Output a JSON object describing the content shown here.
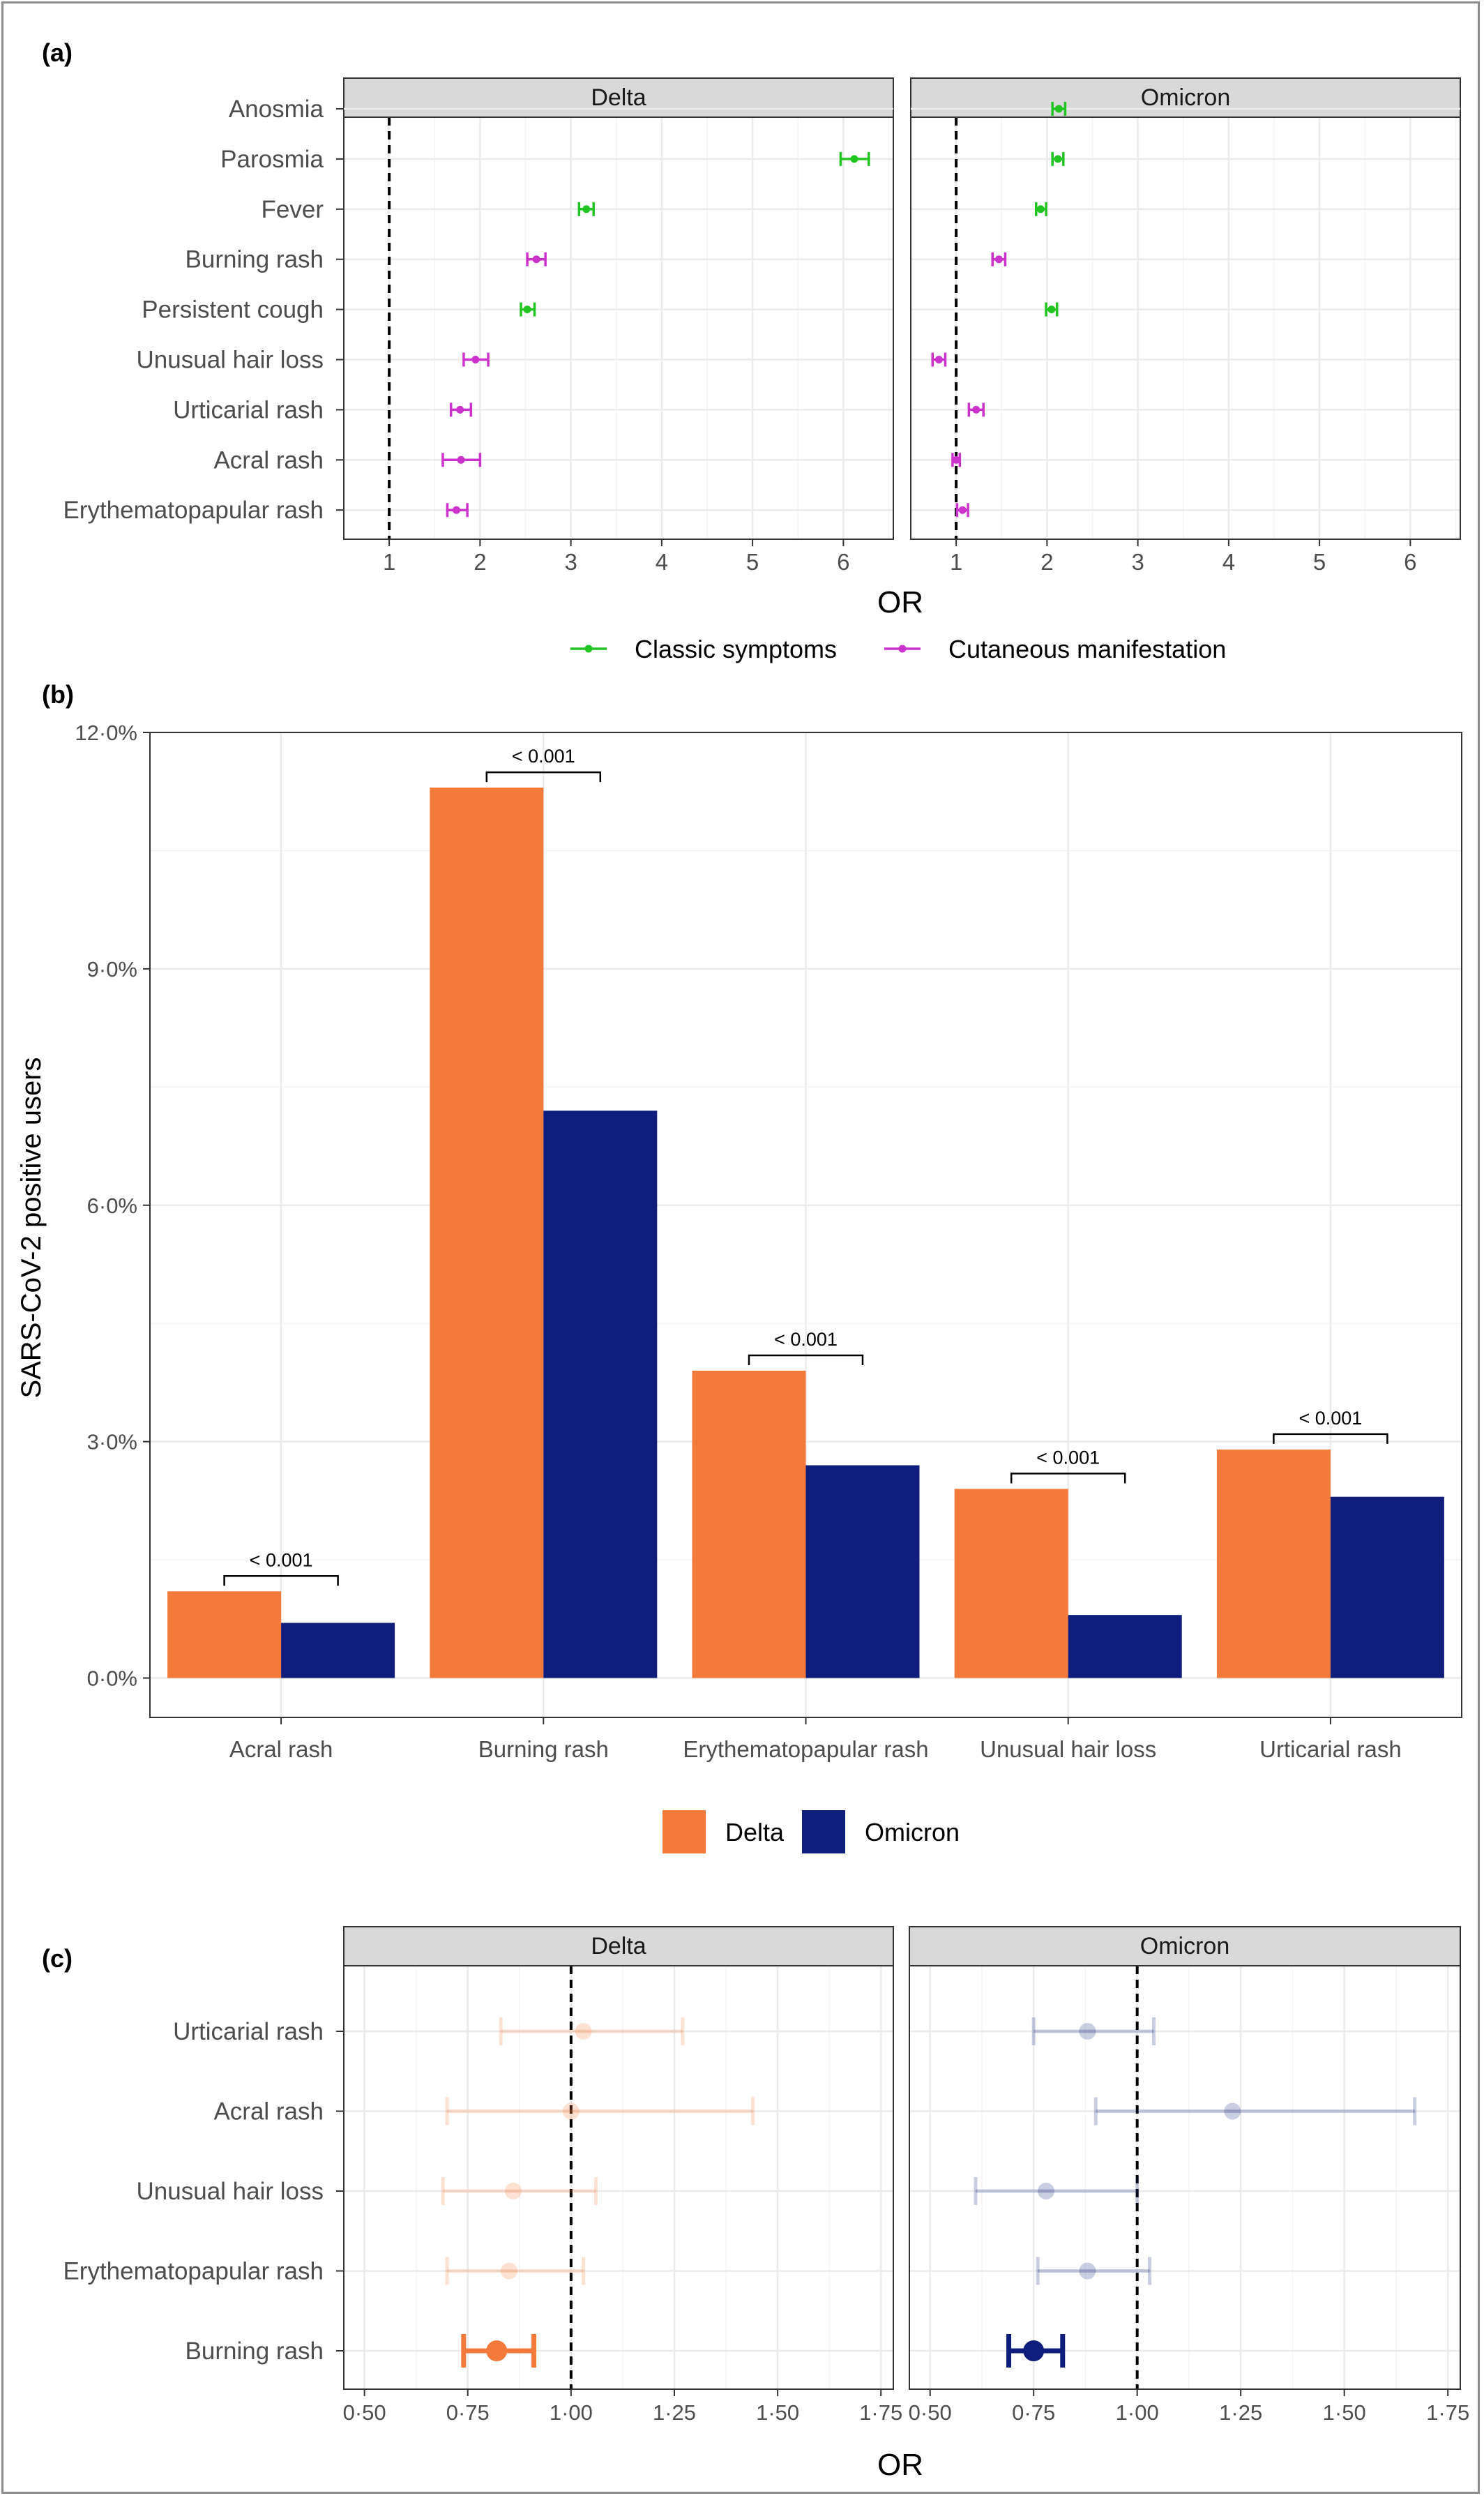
{
  "panel_labels": [
    "(a)",
    "(b)",
    "(c)"
  ],
  "colors": {
    "classic": "#22c422",
    "cutaneous": "#cc33cc",
    "delta": "#f47a3c",
    "omicron": "#0f1e7c",
    "strip": "#d9d9d9",
    "grid": "#ebebeb"
  },
  "chart_data": [
    {
      "type": "scatter",
      "panel": "(a)",
      "facets": [
        "Delta",
        "Omicron"
      ],
      "categories": [
        "Anosmia",
        "Parosmia",
        "Fever",
        "Burning rash",
        "Persistent cough",
        "Unusual hair loss",
        "Urticarial rash",
        "Acral rash",
        "Erythematopapular rash"
      ],
      "category_group": [
        "Classic symptoms",
        "Classic symptoms",
        "Classic symptoms",
        "Cutaneous manifestation",
        "Classic symptoms",
        "Cutaneous manifestation",
        "Cutaneous manifestation",
        "Cutaneous manifestation",
        "Cutaneous manifestation"
      ],
      "series": [
        {
          "facet": "Delta",
          "or": [
            null,
            6.12,
            3.17,
            2.62,
            2.52,
            1.95,
            1.78,
            1.79,
            1.74
          ],
          "low": [
            null,
            5.97,
            3.09,
            2.52,
            2.45,
            1.82,
            1.68,
            1.59,
            1.64
          ],
          "high": [
            null,
            6.28,
            3.25,
            2.72,
            2.6,
            2.09,
            1.9,
            2.0,
            1.86
          ]
        },
        {
          "facet": "Omicron",
          "or": [
            2.13,
            2.12,
            1.93,
            1.47,
            2.05,
            0.81,
            1.22,
            1.0,
            1.07
          ],
          "low": [
            2.06,
            2.06,
            1.88,
            1.4,
            1.99,
            0.74,
            1.14,
            0.96,
            1.01
          ],
          "high": [
            2.2,
            2.18,
            1.99,
            1.54,
            2.11,
            0.88,
            1.3,
            1.04,
            1.13
          ]
        }
      ],
      "xlabel": "OR",
      "xlim": [
        0.5,
        6.55
      ],
      "xticks": [
        1,
        2,
        3,
        4,
        5,
        6
      ],
      "reference_line": 1,
      "legend": [
        "Classic symptoms",
        "Cutaneous manifestation"
      ],
      "legend_position": "bottom"
    },
    {
      "type": "bar",
      "panel": "(b)",
      "categories": [
        "Acral rash",
        "Burning rash",
        "Erythematopapular rash",
        "Unusual hair loss",
        "Urticarial rash"
      ],
      "series": [
        {
          "name": "Delta",
          "values": [
            1.1,
            11.3,
            3.9,
            2.4,
            2.9
          ]
        },
        {
          "name": "Omicron",
          "values": [
            0.7,
            7.2,
            2.7,
            0.8,
            2.3
          ]
        }
      ],
      "p_values": [
        "< 0.001",
        "< 0.001",
        "< 0.001",
        "< 0.001",
        "< 0.001"
      ],
      "ylabel": "SARS-CoV-2 positive users",
      "ylim": [
        -0.5,
        12.0
      ],
      "yticks": [
        0,
        3,
        6,
        9,
        12
      ],
      "ytick_labels": [
        "0·0%",
        "3·0%",
        "6·0%",
        "9·0%",
        "12·0%"
      ],
      "legend": [
        "Delta",
        "Omicron"
      ],
      "legend_position": "bottom"
    },
    {
      "type": "scatter",
      "panel": "(c)",
      "facets": [
        "Delta",
        "Omicron"
      ],
      "categories": [
        "Urticarial rash",
        "Acral rash",
        "Unusual hair loss",
        "Erythematopapular rash",
        "Burning rash"
      ],
      "highlighted": "Burning rash",
      "series": [
        {
          "facet": "Delta",
          "or": [
            1.03,
            1.0,
            0.86,
            0.85,
            0.82
          ],
          "low": [
            0.83,
            0.7,
            0.69,
            0.7,
            0.74
          ],
          "high": [
            1.27,
            1.44,
            1.06,
            1.03,
            0.91
          ]
        },
        {
          "facet": "Omicron",
          "or": [
            0.88,
            1.23,
            0.78,
            0.88,
            0.75
          ],
          "low": [
            0.75,
            0.9,
            0.61,
            0.76,
            0.69
          ],
          "high": [
            1.04,
            1.67,
            1.0,
            1.03,
            0.82
          ]
        }
      ],
      "xlabel": "OR",
      "xlim": [
        0.45,
        1.78
      ],
      "xticks": [
        0.5,
        0.75,
        1.0,
        1.25,
        1.5,
        1.75
      ],
      "xtick_labels": [
        "0·50",
        "0·75",
        "1·00",
        "1·25",
        "1·50",
        "1·75"
      ],
      "reference_line": 1
    }
  ]
}
